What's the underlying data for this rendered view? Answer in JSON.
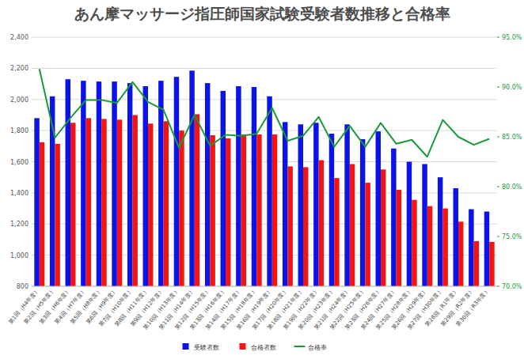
{
  "chart_data": {
    "type": "bar",
    "title": "あん摩マッサージ指圧師国家試験受験者数推移と合格率",
    "categories": [
      "第1回（H4年度）",
      "第2回（H5年度）",
      "第3回（H6年度）",
      "第4回（H7年度）",
      "第5回（H8年度）",
      "第6回（H9年度）",
      "第7回（H10年度）",
      "第8回（H11年度）",
      "第9回（H12年度）",
      "第10回（H13年度）",
      "第11回（H14年度）",
      "第12回（H15年度）",
      "第13回（H16年度）",
      "第14回（H17年度）",
      "第15回（H18年度）",
      "第16回（H19年度）",
      "第17回（H20年度）",
      "第18回（H21年度）",
      "第19回（H22年度）",
      "第20回（H23年度）",
      "第21回（H24年度）",
      "第22回（H25年度）",
      "第23回（H26年度）",
      "第24回（H27年度）",
      "第25回（H28年度）",
      "第26回（H29年度）",
      "第27回（H30年度）",
      "第28回（R1年度）",
      "第29回（R2年度）",
      "第30回（R3年度）"
    ],
    "series": [
      {
        "name": "受験者数",
        "type": "bar",
        "color": "#0a14e6",
        "values": [
          1880,
          2020,
          2130,
          2120,
          2115,
          2115,
          2105,
          2085,
          2120,
          2145,
          2185,
          2105,
          2055,
          2085,
          2080,
          2020,
          1855,
          1840,
          1850,
          1780,
          1840,
          1745,
          1795,
          1685,
          1600,
          1585,
          1500,
          1430,
          1295,
          1280
        ]
      },
      {
        "name": "合格者数",
        "type": "bar",
        "color": "#f01414",
        "values": [
          1725,
          1715,
          1850,
          1880,
          1875,
          1870,
          1900,
          1845,
          1860,
          1800,
          1905,
          1770,
          1750,
          1775,
          1775,
          1775,
          1570,
          1565,
          1610,
          1495,
          1585,
          1465,
          1550,
          1420,
          1355,
          1315,
          1300,
          1215,
          1090,
          1085
        ]
      },
      {
        "name": "合格率",
        "type": "line",
        "axis": "y2",
        "color": "#1a9a3a",
        "values": [
          91.8,
          84.9,
          86.9,
          88.7,
          88.7,
          88.4,
          90.5,
          88.5,
          87.7,
          83.9,
          87.2,
          84.1,
          85.2,
          85.1,
          85.3,
          87.9,
          84.6,
          85.1,
          87.0,
          84.0,
          86.1,
          84.0,
          86.4,
          84.3,
          84.7,
          83.0,
          86.7,
          85.0,
          84.2,
          84.8
        ]
      }
    ],
    "ylim": [
      800,
      2400
    ],
    "yticks": [
      800,
      {
        "value": 1000,
        "label": "1,000"
      },
      {
        "value": 1200,
        "label": "1,200"
      },
      {
        "value": 1400,
        "label": "1,400"
      },
      {
        "value": 1600,
        "label": "1,600"
      },
      {
        "value": 1800,
        "label": "1,800"
      },
      {
        "value": 2000,
        "label": "2,000"
      },
      {
        "value": 2200,
        "label": "2,200"
      },
      {
        "value": 2400,
        "label": "2,400"
      }
    ],
    "y2lim": [
      70,
      95
    ],
    "y2ticks": [
      {
        "value": 70,
        "label": "70.0%"
      },
      {
        "value": 75,
        "label": "75.0%"
      },
      {
        "value": 80,
        "label": "80.0%"
      },
      {
        "value": 85,
        "label": "85.0%"
      },
      {
        "value": 90,
        "label": "90.0%"
      },
      {
        "value": 95,
        "label": "95.0%"
      }
    ],
    "grid": true,
    "legend": "bottom"
  }
}
